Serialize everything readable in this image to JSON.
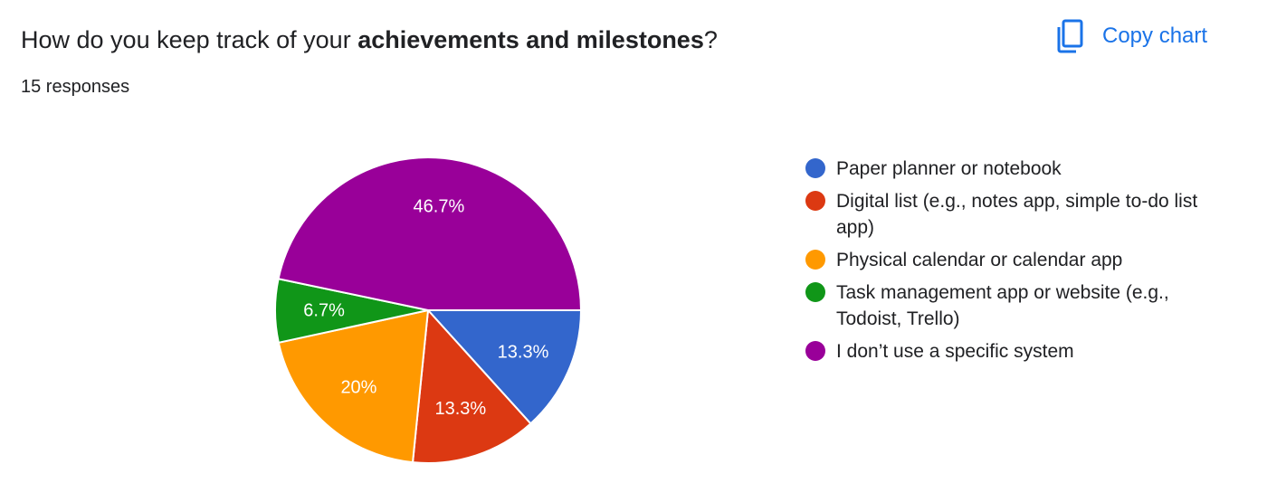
{
  "question": {
    "prefix": "How do you keep track of your ",
    "bold": "achievements and milestones",
    "suffix": "?"
  },
  "responses": "15 responses",
  "copy_chart": {
    "label": "Copy chart",
    "icon": "copy-icon",
    "color": "#1a73e8"
  },
  "chart_data": {
    "type": "pie",
    "title": "How do you keep track of your achievements and milestones?",
    "total_responses": 15,
    "labels": [
      "Paper planner or notebook",
      "Digital list (e.g., notes app, simple to-do list app)",
      "Physical calendar or calendar app",
      "Task management app or website (e.g., Todoist, Trello)",
      "I don’t use a specific system"
    ],
    "values": [
      13.3,
      13.3,
      20,
      6.7,
      46.7
    ],
    "value_labels": [
      "13.3%",
      "13.3%",
      "20%",
      "6.7%",
      "46.7%"
    ],
    "colors": [
      "#3366cc",
      "#dc3912",
      "#ff9900",
      "#109618",
      "#990099"
    ],
    "legend_position": "right"
  }
}
